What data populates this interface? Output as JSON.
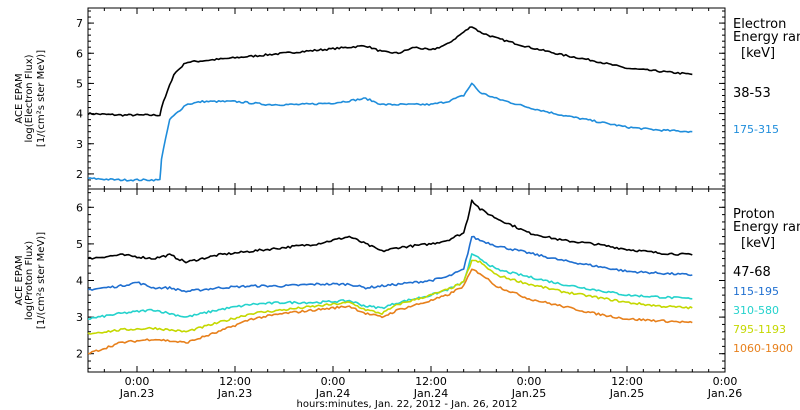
{
  "chart_data": {
    "type": "line",
    "xlabel": "hours:minutes, Jan. 22, 2012 - Jan. 26, 2012",
    "x_ticks": [
      {
        "hour": 0,
        "time": "0:00",
        "date": "Jan.23"
      },
      {
        "hour": 12,
        "time": "12:00",
        "date": "Jan.23"
      },
      {
        "hour": 24,
        "time": "0:00",
        "date": "Jan.24"
      },
      {
        "hour": 36,
        "time": "12:00",
        "date": "Jan.24"
      },
      {
        "hour": 48,
        "time": "0:00",
        "date": "Jan.25"
      },
      {
        "hour": 60,
        "time": "12:00",
        "date": "Jan.25"
      },
      {
        "hour": 72,
        "time": "0:00",
        "date": "Jan.26"
      }
    ],
    "xlim": [
      -6,
      72
    ],
    "panels": [
      {
        "ylabel_lines": [
          "ACE EPAM",
          "log(Electron Flux)",
          "[1/(cm²s ster MeV)]"
        ],
        "ylim": [
          1.5,
          7.5
        ],
        "yticks": [
          2,
          3,
          4,
          5,
          6,
          7
        ],
        "legend_title_lines": [
          "Electron",
          "Energy ran"
        ],
        "legend_unit": "[keV]",
        "series": [
          {
            "name": "38-53",
            "color": "#000000",
            "points": [
              [
                -6,
                4.0
              ],
              [
                -2,
                3.95
              ],
              [
                2.8,
                3.95
              ],
              [
                3,
                4.2
              ],
              [
                4.5,
                5.3
              ],
              [
                6,
                5.7
              ],
              [
                8,
                5.75
              ],
              [
                12,
                5.85
              ],
              [
                16,
                5.95
              ],
              [
                20,
                6.05
              ],
              [
                24,
                6.15
              ],
              [
                28,
                6.25
              ],
              [
                30,
                6.05
              ],
              [
                32,
                6.0
              ],
              [
                34,
                6.2
              ],
              [
                36,
                6.1
              ],
              [
                38,
                6.3
              ],
              [
                40,
                6.7
              ],
              [
                41,
                6.9
              ],
              [
                42,
                6.7
              ],
              [
                44,
                6.5
              ],
              [
                48,
                6.2
              ],
              [
                52,
                5.95
              ],
              [
                56,
                5.75
              ],
              [
                60,
                5.5
              ],
              [
                64,
                5.4
              ],
              [
                68,
                5.3
              ]
            ]
          },
          {
            "name": "175-315",
            "color": "#1f8ddb",
            "points": [
              [
                -6,
                1.85
              ],
              [
                -2,
                1.8
              ],
              [
                2.8,
                1.8
              ],
              [
                3,
                2.5
              ],
              [
                4,
                3.8
              ],
              [
                6,
                4.3
              ],
              [
                8,
                4.4
              ],
              [
                12,
                4.4
              ],
              [
                16,
                4.3
              ],
              [
                20,
                4.3
              ],
              [
                24,
                4.35
              ],
              [
                28,
                4.5
              ],
              [
                30,
                4.3
              ],
              [
                34,
                4.3
              ],
              [
                36,
                4.3
              ],
              [
                38,
                4.4
              ],
              [
                40,
                4.6
              ],
              [
                41,
                5.0
              ],
              [
                42,
                4.7
              ],
              [
                44,
                4.5
              ],
              [
                48,
                4.2
              ],
              [
                52,
                3.95
              ],
              [
                56,
                3.75
              ],
              [
                60,
                3.55
              ],
              [
                64,
                3.45
              ],
              [
                68,
                3.4
              ]
            ]
          }
        ]
      },
      {
        "ylabel_lines": [
          "ACE EPAM",
          "log(Proton Flux)",
          "[1/(cm²s ster MeV)]"
        ],
        "ylim": [
          1.5,
          6.5
        ],
        "yticks": [
          2,
          3,
          4,
          5,
          6
        ],
        "legend_title_lines": [
          "Proton",
          "Energy ran"
        ],
        "legend_unit": "[keV]",
        "series": [
          {
            "name": "47-68",
            "color": "#000000",
            "points": [
              [
                -6,
                4.6
              ],
              [
                -2,
                4.7
              ],
              [
                2,
                4.6
              ],
              [
                4,
                4.7
              ],
              [
                6,
                4.5
              ],
              [
                10,
                4.7
              ],
              [
                14,
                4.8
              ],
              [
                18,
                4.9
              ],
              [
                22,
                5.0
              ],
              [
                26,
                5.2
              ],
              [
                28,
                5.0
              ],
              [
                30,
                4.8
              ],
              [
                32,
                4.9
              ],
              [
                36,
                5.0
              ],
              [
                38,
                5.1
              ],
              [
                40,
                5.3
              ],
              [
                40.5,
                5.7
              ],
              [
                41,
                6.2
              ],
              [
                42,
                5.95
              ],
              [
                44,
                5.7
              ],
              [
                46,
                5.5
              ],
              [
                48,
                5.3
              ],
              [
                52,
                5.1
              ],
              [
                56,
                5.0
              ],
              [
                60,
                4.85
              ],
              [
                64,
                4.75
              ],
              [
                68,
                4.7
              ]
            ]
          },
          {
            "name": "115-195",
            "color": "#1f6fd0",
            "points": [
              [
                -6,
                3.75
              ],
              [
                -2,
                3.85
              ],
              [
                0,
                3.95
              ],
              [
                2,
                3.8
              ],
              [
                4,
                3.8
              ],
              [
                6,
                3.7
              ],
              [
                10,
                3.8
              ],
              [
                14,
                3.85
              ],
              [
                18,
                3.85
              ],
              [
                22,
                3.9
              ],
              [
                26,
                3.9
              ],
              [
                28,
                3.8
              ],
              [
                32,
                3.9
              ],
              [
                36,
                4.0
              ],
              [
                38,
                4.1
              ],
              [
                40,
                4.3
              ],
              [
                41,
                5.2
              ],
              [
                42,
                5.1
              ],
              [
                44,
                4.95
              ],
              [
                48,
                4.75
              ],
              [
                52,
                4.55
              ],
              [
                56,
                4.4
              ],
              [
                60,
                4.25
              ],
              [
                64,
                4.2
              ],
              [
                68,
                4.15
              ]
            ]
          },
          {
            "name": "310-580",
            "color": "#24d2cc",
            "points": [
              [
                -6,
                2.95
              ],
              [
                -2,
                3.1
              ],
              [
                2,
                3.2
              ],
              [
                6,
                3.0
              ],
              [
                10,
                3.2
              ],
              [
                14,
                3.35
              ],
              [
                18,
                3.4
              ],
              [
                22,
                3.4
              ],
              [
                26,
                3.45
              ],
              [
                28,
                3.3
              ],
              [
                30,
                3.25
              ],
              [
                32,
                3.4
              ],
              [
                36,
                3.6
              ],
              [
                38,
                3.75
              ],
              [
                40,
                3.95
              ],
              [
                41,
                4.7
              ],
              [
                42,
                4.6
              ],
              [
                44,
                4.3
              ],
              [
                48,
                4.1
              ],
              [
                52,
                3.9
              ],
              [
                56,
                3.75
              ],
              [
                60,
                3.6
              ],
              [
                64,
                3.55
              ],
              [
                68,
                3.5
              ]
            ]
          },
          {
            "name": "795-1193",
            "color": "#c4d800",
            "points": [
              [
                -6,
                2.55
              ],
              [
                -2,
                2.65
              ],
              [
                2,
                2.7
              ],
              [
                6,
                2.6
              ],
              [
                10,
                2.85
              ],
              [
                14,
                3.1
              ],
              [
                18,
                3.2
              ],
              [
                22,
                3.3
              ],
              [
                26,
                3.4
              ],
              [
                28,
                3.2
              ],
              [
                30,
                3.1
              ],
              [
                32,
                3.35
              ],
              [
                36,
                3.6
              ],
              [
                38,
                3.75
              ],
              [
                40,
                3.95
              ],
              [
                41,
                4.55
              ],
              [
                42,
                4.5
              ],
              [
                44,
                4.15
              ],
              [
                48,
                3.9
              ],
              [
                52,
                3.7
              ],
              [
                56,
                3.55
              ],
              [
                60,
                3.4
              ],
              [
                64,
                3.3
              ],
              [
                68,
                3.25
              ]
            ]
          },
          {
            "name": "1060-1900",
            "color": "#e7801c",
            "points": [
              [
                -6,
                2.0
              ],
              [
                -2,
                2.3
              ],
              [
                2,
                2.4
              ],
              [
                6,
                2.3
              ],
              [
                10,
                2.6
              ],
              [
                14,
                2.95
              ],
              [
                18,
                3.1
              ],
              [
                22,
                3.2
              ],
              [
                26,
                3.3
              ],
              [
                28,
                3.1
              ],
              [
                30,
                3.0
              ],
              [
                32,
                3.2
              ],
              [
                36,
                3.45
              ],
              [
                38,
                3.6
              ],
              [
                40,
                3.85
              ],
              [
                41,
                4.3
              ],
              [
                42,
                4.2
              ],
              [
                44,
                3.85
              ],
              [
                48,
                3.5
              ],
              [
                52,
                3.3
              ],
              [
                56,
                3.1
              ],
              [
                60,
                2.95
              ],
              [
                64,
                2.9
              ],
              [
                68,
                2.85
              ]
            ]
          }
        ]
      }
    ]
  }
}
